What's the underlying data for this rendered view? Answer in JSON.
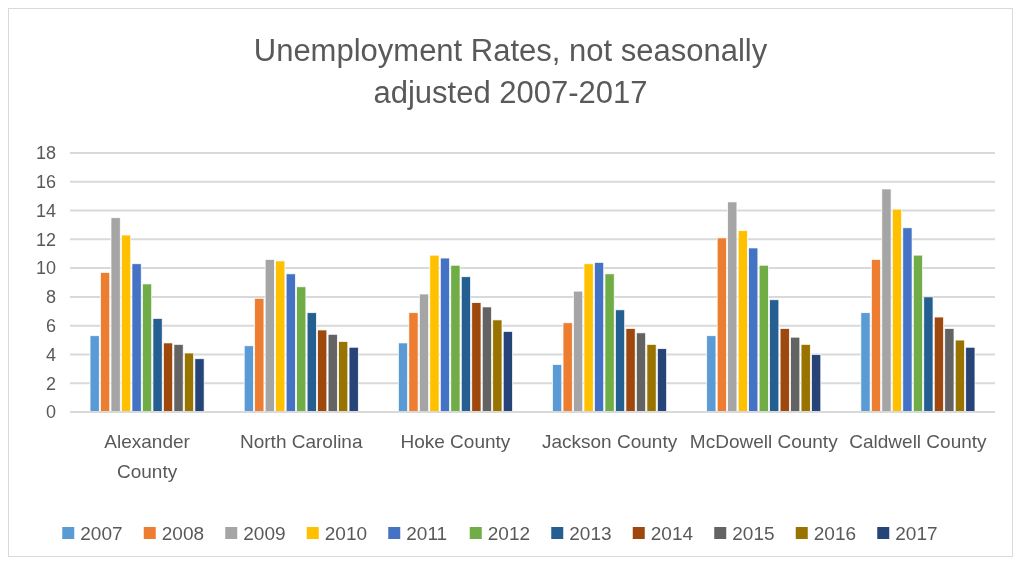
{
  "chart_data": {
    "type": "bar",
    "title": "Unemployment Rates, not seasonally adjusted 2007-2017",
    "categories": [
      "Alexander County",
      "North Carolina",
      "Hoke County",
      "Jackson County",
      "McDowell County",
      "Caldwell County"
    ],
    "series": [
      {
        "name": "2007",
        "color": "#5b9bd5",
        "values": [
          5.3,
          4.6,
          4.8,
          3.3,
          5.3,
          6.9
        ]
      },
      {
        "name": "2008",
        "color": "#ed7d31",
        "values": [
          9.7,
          7.9,
          6.9,
          6.2,
          12.1,
          10.6
        ]
      },
      {
        "name": "2009",
        "color": "#a5a5a5",
        "values": [
          13.5,
          10.6,
          8.2,
          8.4,
          14.6,
          15.5
        ]
      },
      {
        "name": "2010",
        "color": "#ffc000",
        "values": [
          12.3,
          10.5,
          10.9,
          10.3,
          12.6,
          14.1
        ]
      },
      {
        "name": "2011",
        "color": "#4472c4",
        "values": [
          10.3,
          9.6,
          10.7,
          10.4,
          11.4,
          12.8
        ]
      },
      {
        "name": "2012",
        "color": "#70ad47",
        "values": [
          8.9,
          8.7,
          10.2,
          9.6,
          10.2,
          10.9
        ]
      },
      {
        "name": "2013",
        "color": "#255e91",
        "values": [
          6.5,
          6.9,
          9.4,
          7.1,
          7.8,
          8.0
        ]
      },
      {
        "name": "2014",
        "color": "#9e480e",
        "values": [
          4.8,
          5.7,
          7.6,
          5.8,
          5.8,
          6.6
        ]
      },
      {
        "name": "2015",
        "color": "#636363",
        "values": [
          4.7,
          5.4,
          7.3,
          5.5,
          5.2,
          5.8
        ]
      },
      {
        "name": "2016",
        "color": "#997300",
        "values": [
          4.1,
          4.9,
          6.4,
          4.7,
          4.7,
          5.0
        ]
      },
      {
        "name": "2017",
        "color": "#264478",
        "values": [
          3.7,
          4.5,
          5.6,
          4.4,
          4.0,
          4.5
        ]
      }
    ],
    "ylim": [
      0,
      18
    ],
    "yticks": [
      0,
      2,
      4,
      6,
      8,
      10,
      12,
      14,
      16,
      18
    ],
    "grid": "y",
    "legend": "bottom"
  }
}
